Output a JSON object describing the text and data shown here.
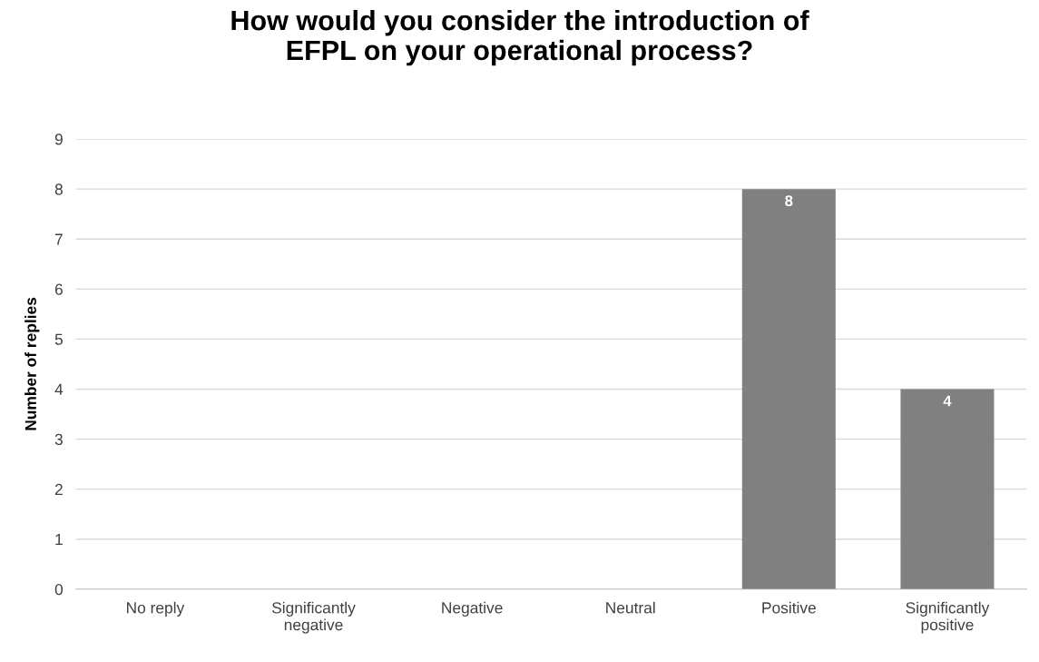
{
  "chart_data": {
    "type": "bar",
    "title": "How would you consider the introduction of\nEFPL on your operational process?",
    "ylabel": "Number of replies",
    "categories": [
      "No reply",
      "Significantly\nnegative",
      "Negative",
      "Neutral",
      "Positive",
      "Significantly\npositive"
    ],
    "values": [
      0,
      0,
      0,
      0,
      8,
      4
    ],
    "value_labels": [
      null,
      null,
      null,
      null,
      "8",
      "4"
    ],
    "color": "#808080",
    "ylim": [
      0,
      9
    ],
    "yticks": [
      0,
      1,
      2,
      3,
      4,
      5,
      6,
      7,
      8,
      9
    ],
    "grid": "y"
  }
}
